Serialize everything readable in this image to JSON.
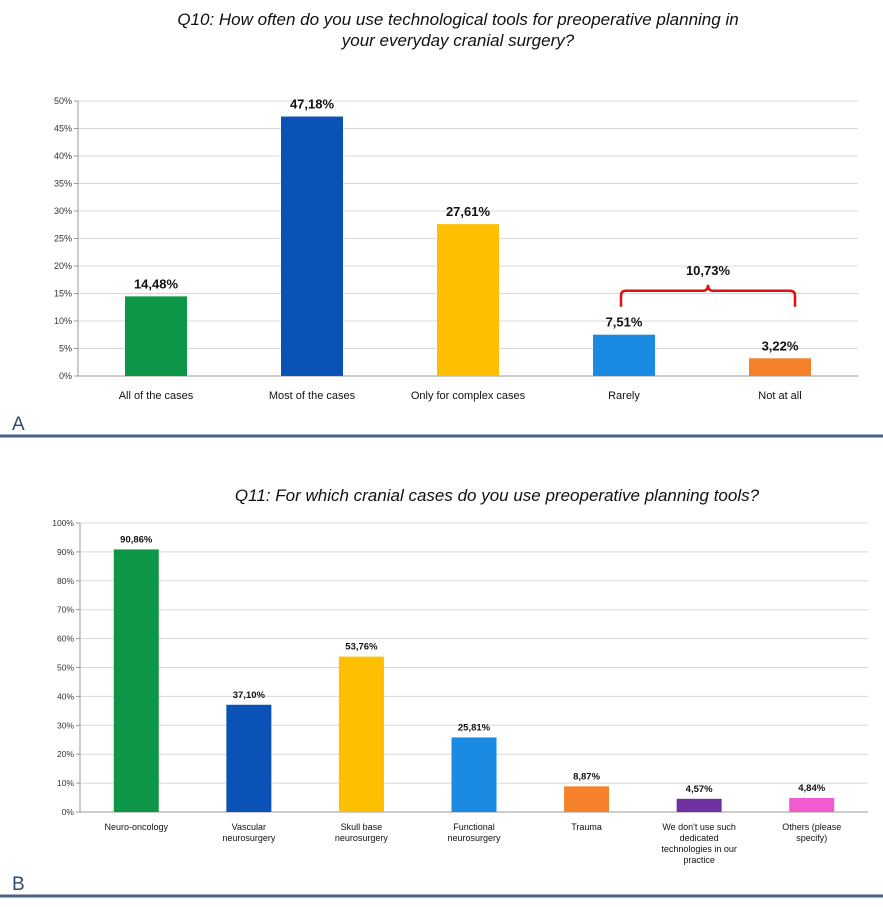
{
  "panels": [
    {
      "letter": "A"
    },
    {
      "letter": "B"
    }
  ],
  "chart_data": [
    {
      "type": "bar",
      "title_lines": [
        "Q10: How often do you use technological tools for preoperative planning in",
        "your everyday cranial surgery?"
      ],
      "categories": [
        "All of the cases",
        "Most of the cases",
        "Only for complex cases",
        "Rarely",
        "Not at all"
      ],
      "values": [
        14.48,
        47.18,
        27.61,
        7.51,
        3.22
      ],
      "data_labels": [
        "14,48%",
        "47,18%",
        "27,61%",
        "7,51%",
        "3,22%"
      ],
      "colors": [
        "#0d9647",
        "#0a52b5",
        "#fdbf00",
        "#1a8ae3",
        "#f5812b"
      ],
      "ylim": [
        0,
        50
      ],
      "yticks": [
        "0%",
        "5%",
        "10%",
        "15%",
        "20%",
        "25%",
        "30%",
        "35%",
        "40%",
        "45%",
        "50%"
      ],
      "grid": true,
      "annotation": {
        "label": "10,73%",
        "spans": [
          "Rarely",
          "Not at all"
        ],
        "color": "#dd1111"
      }
    },
    {
      "type": "bar",
      "title_lines": [
        "Q11: For which cranial cases do you use preoperative planning tools?"
      ],
      "categories": [
        [
          "Neuro-oncology"
        ],
        [
          "Vascular",
          "neurosurgery"
        ],
        [
          "Skull base",
          "neurosurgery"
        ],
        [
          "Functional",
          "neurosurgery"
        ],
        [
          "Trauma"
        ],
        [
          "We don't use such",
          "dedicated",
          "technologies in our",
          "practice"
        ],
        [
          "Others (please",
          "specify)"
        ]
      ],
      "values": [
        90.86,
        37.1,
        53.76,
        25.81,
        8.87,
        4.57,
        4.84
      ],
      "data_labels": [
        "90,86%",
        "37,10%",
        "53,76%",
        "25,81%",
        "8,87%",
        "4,57%",
        "4,84%"
      ],
      "colors": [
        "#0d9647",
        "#0a52b5",
        "#fdbf00",
        "#1a8ae3",
        "#f5812b",
        "#7030a0",
        "#f25ad0"
      ],
      "ylim": [
        0,
        100
      ],
      "yticks": [
        "0%",
        "10%",
        "20%",
        "30%",
        "40%",
        "50%",
        "60%",
        "70%",
        "80%",
        "90%",
        "100%"
      ],
      "grid": true
    }
  ]
}
